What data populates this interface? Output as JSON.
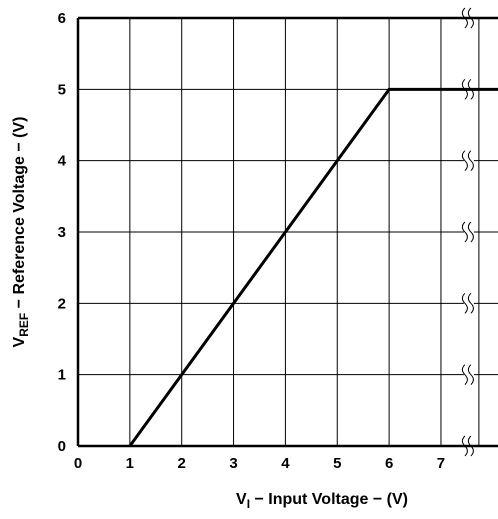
{
  "chart_data": {
    "type": "line",
    "xlabel": {
      "main": "V",
      "sub": "I",
      "rest": " − Input Voltage − (V)"
    },
    "ylabel": {
      "main": "V",
      "sub": "REF",
      "rest": " − Reference Voltage − (V)"
    },
    "xlim": [
      0,
      8.1
    ],
    "ylim": [
      0,
      6
    ],
    "x_ticks": [
      "0",
      "1",
      "2",
      "3",
      "4",
      "5",
      "6",
      "7"
    ],
    "y_ticks": [
      "0",
      "1",
      "2",
      "3",
      "4",
      "5",
      "6"
    ],
    "axis_break_after_x": 7.5,
    "grid": true,
    "series": [
      {
        "x": [
          1,
          6,
          8.1
        ],
        "y": [
          0,
          5,
          5
        ]
      }
    ],
    "colors": {
      "line": "#000000",
      "grid": "#000000",
      "background": "#ffffff"
    }
  }
}
